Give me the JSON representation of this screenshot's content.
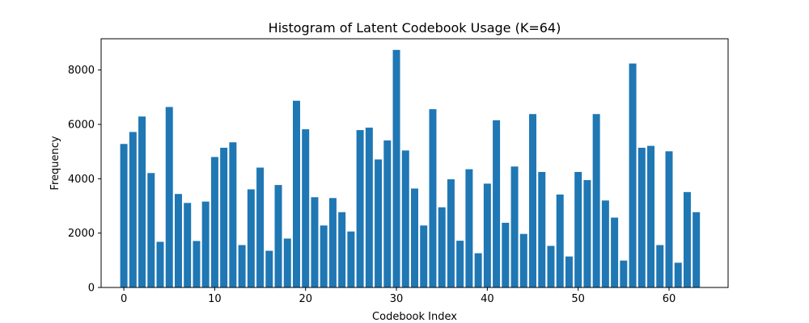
{
  "chart_data": {
    "type": "bar",
    "title": "Histogram of Latent Codebook Usage (K=64)",
    "xlabel": "Codebook Index",
    "ylabel": "Frequency",
    "xlim": [
      -2.5,
      66.5
    ],
    "ylim": [
      0,
      9150
    ],
    "xticks": [
      0,
      10,
      20,
      30,
      40,
      50,
      60
    ],
    "yticks": [
      0,
      2000,
      4000,
      6000,
      8000
    ],
    "grid": false,
    "bar_color": "#1f77b4",
    "categories": [
      0,
      1,
      2,
      3,
      4,
      5,
      6,
      7,
      8,
      9,
      10,
      11,
      12,
      13,
      14,
      15,
      16,
      17,
      18,
      19,
      20,
      21,
      22,
      23,
      24,
      25,
      26,
      27,
      28,
      29,
      30,
      31,
      32,
      33,
      34,
      35,
      36,
      37,
      38,
      39,
      40,
      41,
      42,
      43,
      44,
      45,
      46,
      47,
      48,
      49,
      50,
      51,
      52,
      53,
      54,
      55,
      56,
      57,
      58,
      59,
      60,
      61,
      62,
      63
    ],
    "values": [
      5280,
      5720,
      6290,
      4210,
      1680,
      6640,
      3440,
      3110,
      1710,
      3160,
      4800,
      5140,
      5340,
      1560,
      3610,
      4410,
      1350,
      3770,
      1800,
      6870,
      5820,
      3320,
      2280,
      3290,
      2770,
      2060,
      5790,
      5880,
      4710,
      5410,
      8740,
      5040,
      3640,
      2280,
      6560,
      2950,
      3980,
      1720,
      4350,
      1260,
      3820,
      6150,
      2380,
      4450,
      1970,
      6380,
      4250,
      1530,
      3420,
      1140,
      4250,
      3950,
      6380,
      3200,
      2570,
      990,
      8240,
      5140,
      5210,
      1560,
      5010,
      910,
      3510,
      2770
    ]
  }
}
